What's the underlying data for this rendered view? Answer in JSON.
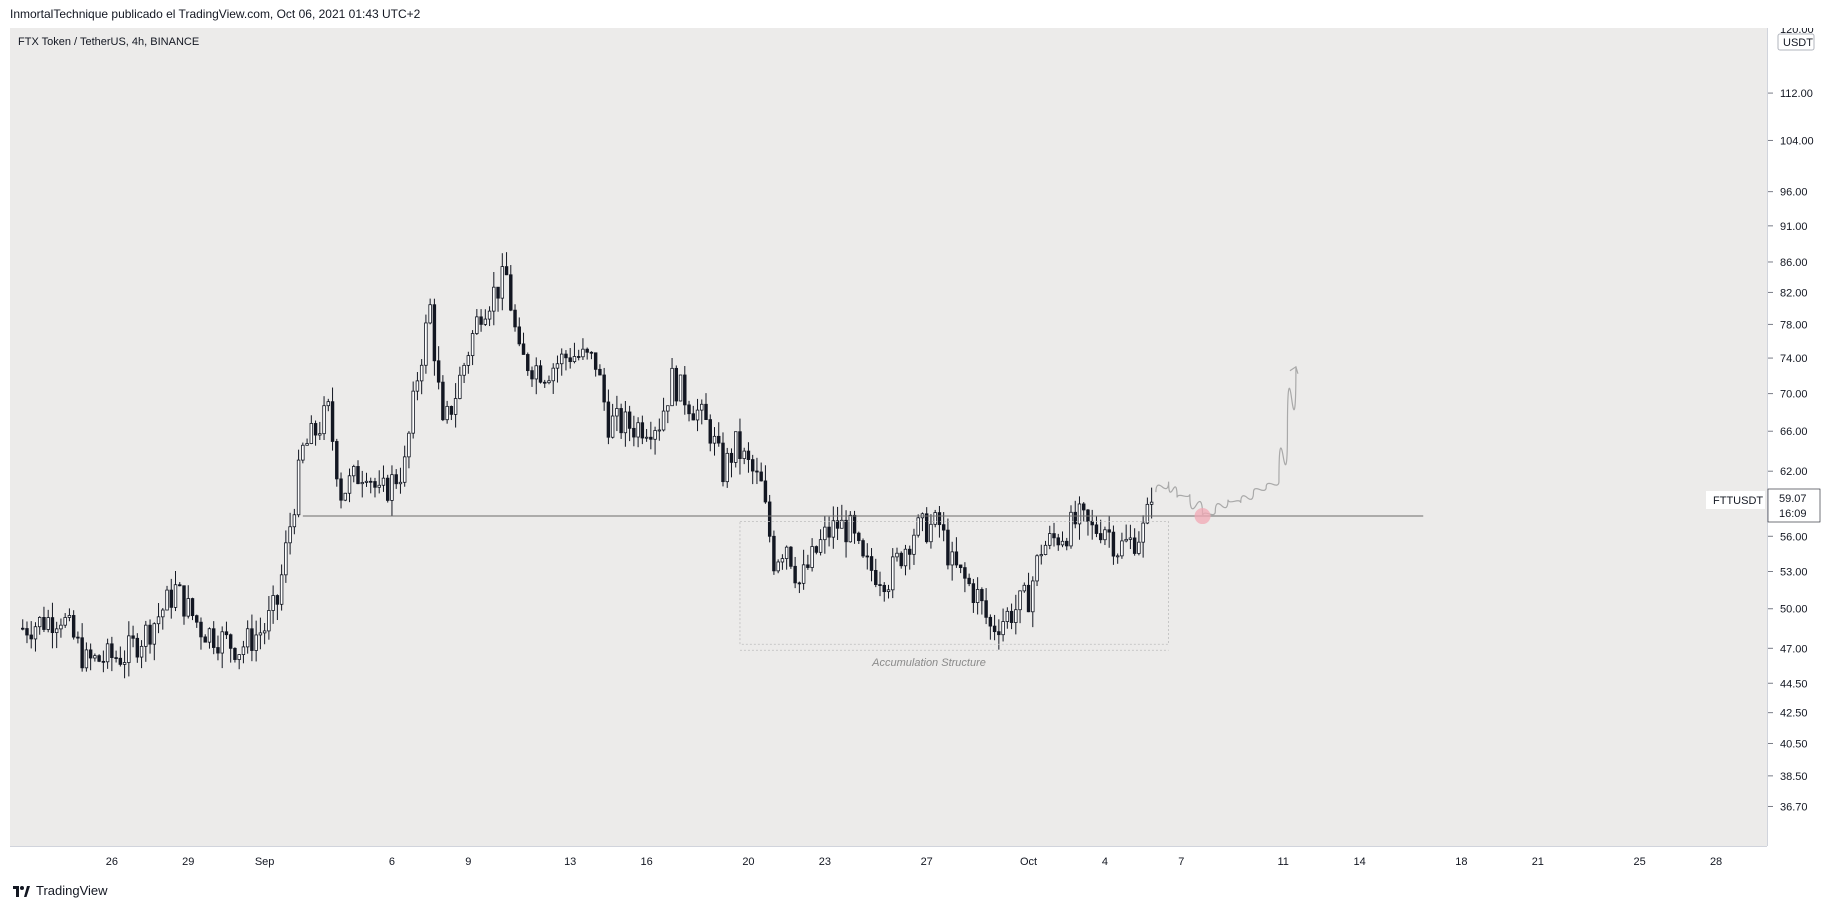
{
  "header": {
    "publication": "InmortalTechnique publicado el TradingView.com, Oct 06, 2021 01:43 UTC+2"
  },
  "legend": {
    "symbol_line": "FTX Token / TetherUS, 4h, BINANCE"
  },
  "branding": {
    "footer_label": "TradingView",
    "logo_icon": "tradingview-logo-icon"
  },
  "colors": {
    "plot_background": "#ecebea",
    "candle": "#131722",
    "level_line": "#6b6b6b",
    "projection": "#a9a9a9",
    "target_circle": "#f2a8b4"
  },
  "annotations": {
    "accumulation_label": "Accumulation Structure"
  },
  "price_axis": {
    "currency_label": "USDT",
    "top_cut_label": "120.00",
    "symbol_tag": "FTTUSDT",
    "last_price": "59.07",
    "countdown": "16:09"
  },
  "chart_data": {
    "type": "candlestick",
    "symbol": "FTTUSDT",
    "interval": "4h",
    "exchange": "BINANCE",
    "y_scale": "log",
    "ylim": [
      34.5,
      124.0
    ],
    "y_ticks": [
      112.0,
      104.0,
      96.0,
      91.0,
      86.0,
      82.0,
      78.0,
      74.0,
      70.0,
      66.0,
      62.0,
      56.0,
      53.0,
      50.0,
      47.0,
      44.5,
      42.5,
      40.5,
      38.5,
      36.7
    ],
    "y_tick_labels": [
      "112.00",
      "104.00",
      "96.00",
      "91.00",
      "86.00",
      "82.00",
      "78.00",
      "74.00",
      "70.00",
      "66.00",
      "62.00",
      "56.00",
      "53.00",
      "50.00",
      "47.00",
      "44.50",
      "42.50",
      "40.50",
      "38.50",
      "36.70"
    ],
    "x_range": [
      "2021-08-22",
      "2021-10-30"
    ],
    "x_tick_labels": [
      {
        "date": "2021-08-26",
        "label": "26"
      },
      {
        "date": "2021-08-29",
        "label": "29"
      },
      {
        "date": "2021-09-01",
        "label": "Sep"
      },
      {
        "date": "2021-09-06",
        "label": "6"
      },
      {
        "date": "2021-09-09",
        "label": "9"
      },
      {
        "date": "2021-09-13",
        "label": "13"
      },
      {
        "date": "2021-09-16",
        "label": "16"
      },
      {
        "date": "2021-09-20",
        "label": "20"
      },
      {
        "date": "2021-09-23",
        "label": "23"
      },
      {
        "date": "2021-09-27",
        "label": "27"
      },
      {
        "date": "2021-10-01",
        "label": "Oct"
      },
      {
        "date": "2021-10-04",
        "label": "4"
      },
      {
        "date": "2021-10-07",
        "label": "7"
      },
      {
        "date": "2021-10-11",
        "label": "11"
      },
      {
        "date": "2021-10-14",
        "label": "14"
      },
      {
        "date": "2021-10-18",
        "label": "18"
      },
      {
        "date": "2021-10-21",
        "label": "21"
      },
      {
        "date": "2021-10-25",
        "label": "25"
      },
      {
        "date": "2021-10-28",
        "label": "28"
      }
    ],
    "close_path": [
      [
        "2021-08-22T12:00",
        48.5
      ],
      [
        "2021-08-24T00:00",
        49.5
      ],
      [
        "2021-08-25T00:00",
        46.0
      ],
      [
        "2021-08-26T12:00",
        46.5
      ],
      [
        "2021-08-27T12:00",
        48.5
      ],
      [
        "2021-08-28T12:00",
        51.5
      ],
      [
        "2021-08-29T12:00",
        48.5
      ],
      [
        "2021-08-31T00:00",
        47.0
      ],
      [
        "2021-09-01T00:00",
        48.5
      ],
      [
        "2021-09-01T12:00",
        50.5
      ],
      [
        "2021-09-02T00:00",
        57.0
      ],
      [
        "2021-09-02T12:00",
        64.0
      ],
      [
        "2021-09-03T12:00",
        68.0
      ],
      [
        "2021-09-04T00:00",
        60.0
      ],
      [
        "2021-09-05T00:00",
        62.5
      ],
      [
        "2021-09-05T12:00",
        59.5
      ],
      [
        "2021-09-06T12:00",
        62.5
      ],
      [
        "2021-09-07T00:00",
        72.0
      ],
      [
        "2021-09-07T12:00",
        80.0
      ],
      [
        "2021-09-08T00:00",
        66.0
      ],
      [
        "2021-09-08T12:00",
        70.0
      ],
      [
        "2021-09-09T00:00",
        75.0
      ],
      [
        "2021-09-09T12:00",
        80.0
      ],
      [
        "2021-09-10T12:00",
        84.0
      ],
      [
        "2021-09-11T00:00",
        74.0
      ],
      [
        "2021-09-12T00:00",
        72.5
      ],
      [
        "2021-09-13T00:00",
        74.5
      ],
      [
        "2021-09-14T00:00",
        73.5
      ],
      [
        "2021-09-14T12:00",
        67.0
      ],
      [
        "2021-09-15T12:00",
        66.5
      ],
      [
        "2021-09-16T12:00",
        67.0
      ],
      [
        "2021-09-17T00:00",
        71.5
      ],
      [
        "2021-09-18T00:00",
        68.0
      ],
      [
        "2021-09-18T12:00",
        66.0
      ],
      [
        "2021-09-19T00:00",
        62.0
      ],
      [
        "2021-09-19T12:00",
        64.5
      ],
      [
        "2021-09-20T00:00",
        62.5
      ],
      [
        "2021-09-20T12:00",
        60.5
      ],
      [
        "2021-09-21T00:00",
        54.0
      ],
      [
        "2021-09-21T12:00",
        55.5
      ],
      [
        "2021-09-22T00:00",
        52.0
      ],
      [
        "2021-09-22T12:00",
        54.0
      ],
      [
        "2021-09-23T00:00",
        56.0
      ],
      [
        "2021-09-23T12:00",
        57.0
      ],
      [
        "2021-09-24T00:00",
        56.5
      ],
      [
        "2021-09-24T12:00",
        53.5
      ],
      [
        "2021-09-25T12:00",
        52.5
      ],
      [
        "2021-09-26T00:00",
        54.5
      ],
      [
        "2021-09-26T12:00",
        56.5
      ],
      [
        "2021-09-27T12:00",
        57.0
      ],
      [
        "2021-09-28T00:00",
        53.5
      ],
      [
        "2021-09-29T00:00",
        51.0
      ],
      [
        "2021-09-29T12:00",
        48.5
      ],
      [
        "2021-09-30T12:00",
        50.0
      ],
      [
        "2021-10-01T00:00",
        51.0
      ],
      [
        "2021-10-01T12:00",
        55.0
      ],
      [
        "2021-10-02T12:00",
        56.5
      ],
      [
        "2021-10-03T00:00",
        57.5
      ],
      [
        "2021-10-03T12:00",
        56.5
      ],
      [
        "2021-10-04T00:00",
        57.0
      ],
      [
        "2021-10-04T12:00",
        55.0
      ],
      [
        "2021-10-05T00:00",
        55.5
      ],
      [
        "2021-10-05T12:00",
        56.5
      ],
      [
        "2021-10-05T20:00",
        59.07
      ]
    ],
    "horizontal_level": {
      "value": 57.8,
      "start": "2021-09-02T12:00",
      "end": "2021-10-16T12:00"
    },
    "accumulation_box": {
      "from": "2021-09-19T16:00",
      "to": "2021-10-06T12:00",
      "top": 57.3,
      "bottom": 47.3
    },
    "projection_path": [
      [
        "2021-10-06T00:00",
        60.0
      ],
      [
        "2021-10-06T12:00",
        61.0
      ],
      [
        "2021-10-06T20:00",
        59.5
      ],
      [
        "2021-10-07T08:00",
        59.8
      ],
      [
        "2021-10-07T20:00",
        57.8
      ],
      [
        "2021-10-08T08:00",
        58.2
      ],
      [
        "2021-10-08T20:00",
        59.3
      ],
      [
        "2021-10-09T08:00",
        59.0
      ],
      [
        "2021-10-09T20:00",
        60.0
      ],
      [
        "2021-10-10T08:00",
        60.5
      ],
      [
        "2021-10-10T20:00",
        61.0
      ],
      [
        "2021-10-11T04:00",
        66.0
      ],
      [
        "2021-10-11T12:00",
        73.0
      ]
    ],
    "target_circle_at": [
      "2021-10-07T20:00",
      57.8
    ]
  }
}
